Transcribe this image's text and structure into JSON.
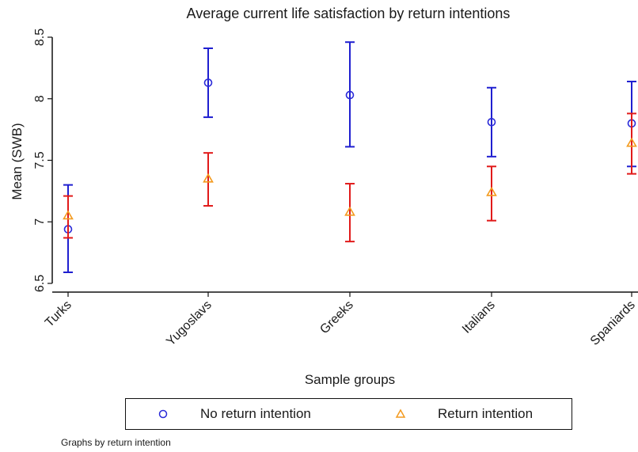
{
  "chart_data": {
    "type": "scatter",
    "title": "Average current life satisfaction by return intentions",
    "xlabel": "Sample groups",
    "ylabel": "Mean (SWB)",
    "categories": [
      "Turks",
      "Yugoslavs",
      "Greeks",
      "Italians",
      "Spaniards"
    ],
    "ylim": [
      6.5,
      8.5
    ],
    "yticks": [
      "6.5",
      "7",
      "7.5",
      "8",
      "8.5"
    ],
    "grid": false,
    "legend_position": "bottom",
    "series": [
      {
        "name": "No return intention",
        "marker": "circle",
        "color": "#2a2ad8",
        "bar_color": "#1f1fd0",
        "values": [
          6.94,
          8.13,
          8.03,
          7.81,
          7.8
        ],
        "lower": [
          6.59,
          7.85,
          7.61,
          7.53,
          7.45
        ],
        "upper": [
          7.3,
          8.41,
          8.46,
          8.09,
          8.14
        ]
      },
      {
        "name": "Return intention",
        "marker": "triangle",
        "color": "#f39a1e",
        "bar_color": "#e11a1a",
        "values": [
          7.05,
          7.35,
          7.08,
          7.24,
          7.64
        ],
        "lower": [
          6.87,
          7.13,
          6.84,
          7.01,
          7.39
        ],
        "upper": [
          7.21,
          7.56,
          7.31,
          7.45,
          7.88
        ]
      }
    ]
  },
  "note": "Graphs by return intention"
}
